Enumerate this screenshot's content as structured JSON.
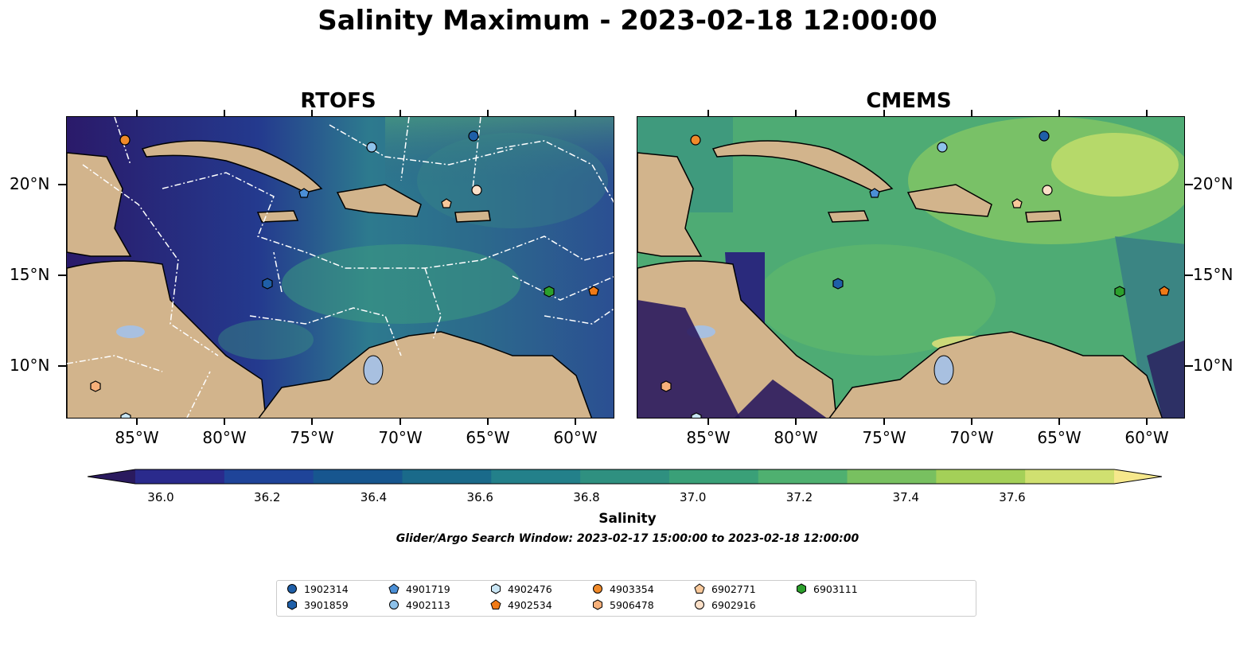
{
  "title": "Salinity Maximum - 2023-02-18 12:00:00",
  "panels": [
    {
      "title": "RTOFS"
    },
    {
      "title": "CMEMS"
    }
  ],
  "axes": {
    "lon_labels": [
      "85°W",
      "80°W",
      "75°W",
      "70°W",
      "65°W",
      "60°W"
    ],
    "lat_labels": [
      "20°N",
      "15°N",
      "10°N"
    ]
  },
  "colorbar": {
    "label": "Salinity",
    "ticks": [
      "36.0",
      "36.2",
      "36.4",
      "36.6",
      "36.8",
      "37.0",
      "37.2",
      "37.4",
      "37.6"
    ],
    "min": 35.9,
    "max": 37.7,
    "extend": "both",
    "colors": [
      "#2a1a5e",
      "#2a2a8c",
      "#1f4499",
      "#17568f",
      "#1a6a8a",
      "#23808a",
      "#2f9080",
      "#3aa078",
      "#4fb070",
      "#78c060",
      "#a4d058",
      "#d0e070",
      "#f6e88c"
    ]
  },
  "subtitle_window": "Glider/Argo Search Window: 2023-02-17 15:00:00 to 2023-02-18 12:00:00",
  "legend": [
    {
      "id": "1902314",
      "shape": "circle",
      "color": "#1f5fa8"
    },
    {
      "id": "3901859",
      "shape": "hexagon",
      "color": "#1f5fa8"
    },
    {
      "id": "4901719",
      "shape": "pentagon",
      "color": "#4b8fd6"
    },
    {
      "id": "4902113",
      "shape": "circle",
      "color": "#8ec2ea"
    },
    {
      "id": "4902476",
      "shape": "hexagon",
      "color": "#c9e6f5"
    },
    {
      "id": "4902534",
      "shape": "pentagon",
      "color": "#f07a16"
    },
    {
      "id": "4903354",
      "shape": "circle",
      "color": "#f08a2a"
    },
    {
      "id": "5906478",
      "shape": "hexagon",
      "color": "#f6b07a"
    },
    {
      "id": "6902771",
      "shape": "pentagon",
      "color": "#f8c89a"
    },
    {
      "id": "6902916",
      "shape": "circle",
      "color": "#fbe0c8"
    },
    {
      "id": "6903111",
      "shape": "hexagon",
      "color": "#2ca02c"
    }
  ],
  "colors": {
    "land": "#d2b48c",
    "lake": "#a8c0e0",
    "cmems_ocean": "#5cb476",
    "rtofs_ocean": "#253f8a"
  }
}
